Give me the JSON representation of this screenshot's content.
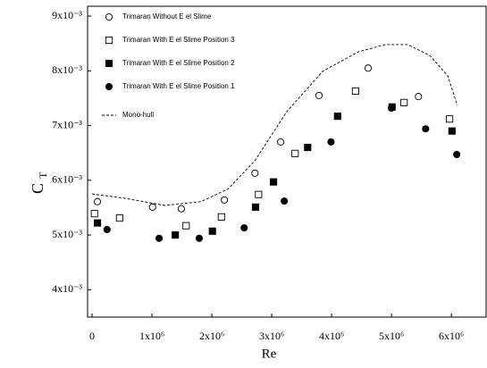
{
  "chart_data": {
    "type": "scatter",
    "x_label": "Re",
    "y_label": "C",
    "y_label_subscript": "T",
    "xlim": [
      -75000,
      6580000
    ],
    "ylim": [
      0.0035,
      0.00918
    ],
    "xticks": [
      0,
      {
        "value": 1000000,
        "label": "1x10⁶"
      },
      {
        "value": 2000000,
        "label": "2x10⁶"
      },
      {
        "value": 3000000,
        "label": "3x10⁶"
      },
      {
        "value": 4000000,
        "label": "4x10⁶"
      },
      {
        "value": 5000000,
        "label": "5x10⁶"
      },
      {
        "value": 6000000,
        "label": "6x10⁶"
      }
    ],
    "yticks": [
      {
        "value": 0.004,
        "label": "4x10⁻³"
      },
      {
        "value": 0.005,
        "label": "5x10⁻³"
      },
      {
        "value": 0.006,
        "label": "6x10⁻³"
      },
      {
        "value": 0.007,
        "label": "7x10⁻³"
      },
      {
        "value": 0.008,
        "label": "8x10⁻³"
      },
      {
        "value": 0.009,
        "label": "9x10⁻³"
      }
    ],
    "legend": "upper left",
    "series": [
      {
        "name": "Trimaran Without E el Slime",
        "color": "#000000",
        "marker": "circle",
        "filled": false,
        "x": [
          90000,
          1010000,
          1490000,
          2210000,
          2720000,
          3150000,
          3790000,
          4610000,
          5450000
        ],
        "y": [
          0.00561,
          0.00551,
          0.00548,
          0.00564,
          0.00613,
          0.0067,
          0.00755,
          0.00805,
          0.00753
        ]
      },
      {
        "name": "Trimaran With E el Slime Position 3",
        "color": "#000000",
        "marker": "square",
        "filled": false,
        "x": [
          40000,
          460000,
          1570000,
          2160000,
          2780000,
          3390000,
          4400000,
          5210000,
          5970000
        ],
        "y": [
          0.00539,
          0.00531,
          0.00517,
          0.00533,
          0.00574,
          0.00649,
          0.00763,
          0.00742,
          0.00712
        ]
      },
      {
        "name": "Trimaran With E el Slime Position 2",
        "color": "#000000",
        "marker": "square",
        "filled": true,
        "x": [
          90000,
          1390000,
          2010000,
          2730000,
          3030000,
          3600000,
          4100000,
          5010000,
          6010000
        ],
        "y": [
          0.00522,
          0.005,
          0.00507,
          0.00551,
          0.00597,
          0.0066,
          0.00717,
          0.00734,
          0.0069
        ]
      },
      {
        "name": "Trimaran With E el Slime Position 1",
        "color": "#000000",
        "marker": "circle",
        "filled": true,
        "x": [
          250000,
          1120000,
          1790000,
          2540000,
          3210000,
          3990000,
          5000000,
          5570000,
          6090000
        ],
        "y": [
          0.0051,
          0.00494,
          0.00494,
          0.00513,
          0.00562,
          0.0067,
          0.00732,
          0.00694,
          0.00647
        ]
      },
      {
        "name": "Mono-hull",
        "color": "#000000",
        "marker": "none",
        "line": "dashed",
        "x": [
          0,
          550000,
          1220000,
          1820000,
          2270000,
          2720000,
          3250000,
          3850000,
          4450000,
          4900000,
          5270000,
          5640000,
          5940000,
          6100000
        ],
        "y": [
          0.00575,
          0.00567,
          0.00554,
          0.00561,
          0.00584,
          0.00636,
          0.00725,
          0.00799,
          0.00835,
          0.00848,
          0.00848,
          0.00828,
          0.00791,
          0.00737
        ]
      }
    ]
  }
}
